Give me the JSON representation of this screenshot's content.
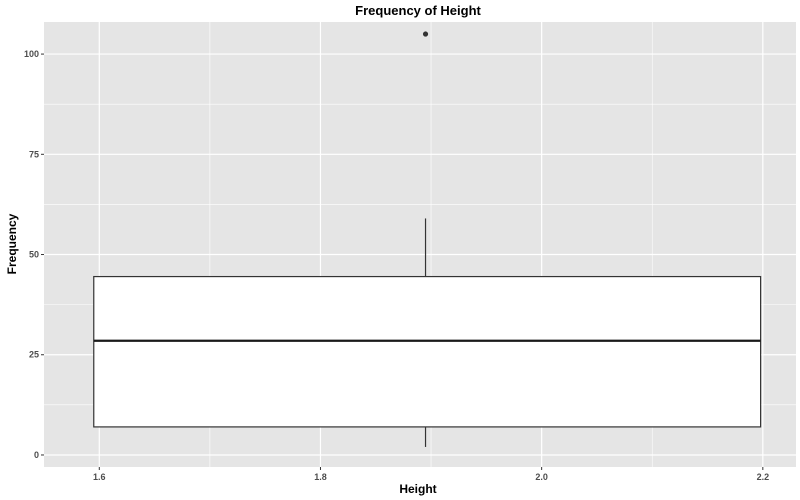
{
  "chart_data": {
    "type": "boxplot",
    "title": "Frequency of Height",
    "xlabel": "Height",
    "ylabel": "Frequency",
    "xlim": [
      1.55,
      2.23
    ],
    "ylim": [
      -3,
      108
    ],
    "x_ticks": [
      1.6,
      1.8,
      2.0,
      2.2
    ],
    "x_tick_labels": [
      "1.6",
      "1.8",
      "2.0",
      "2.2"
    ],
    "y_ticks": [
      0,
      25,
      50,
      75,
      100
    ],
    "y_tick_labels": [
      "0",
      "25",
      "50",
      "75",
      "100"
    ],
    "grid": true,
    "box": {
      "x_center": 1.895,
      "x_min": 1.595,
      "x_max": 2.198,
      "whisker_low": 2,
      "q1": 7,
      "median": 28.5,
      "q3": 44.5,
      "whisker_high": 59
    },
    "outliers": [
      {
        "x": 1.895,
        "y": 105
      }
    ],
    "colors": {
      "panel_bg": "#e5e5e5",
      "grid": "#ffffff",
      "box_fill": "#ffffff",
      "box_line": "#333333",
      "outlier": "#333333"
    }
  }
}
